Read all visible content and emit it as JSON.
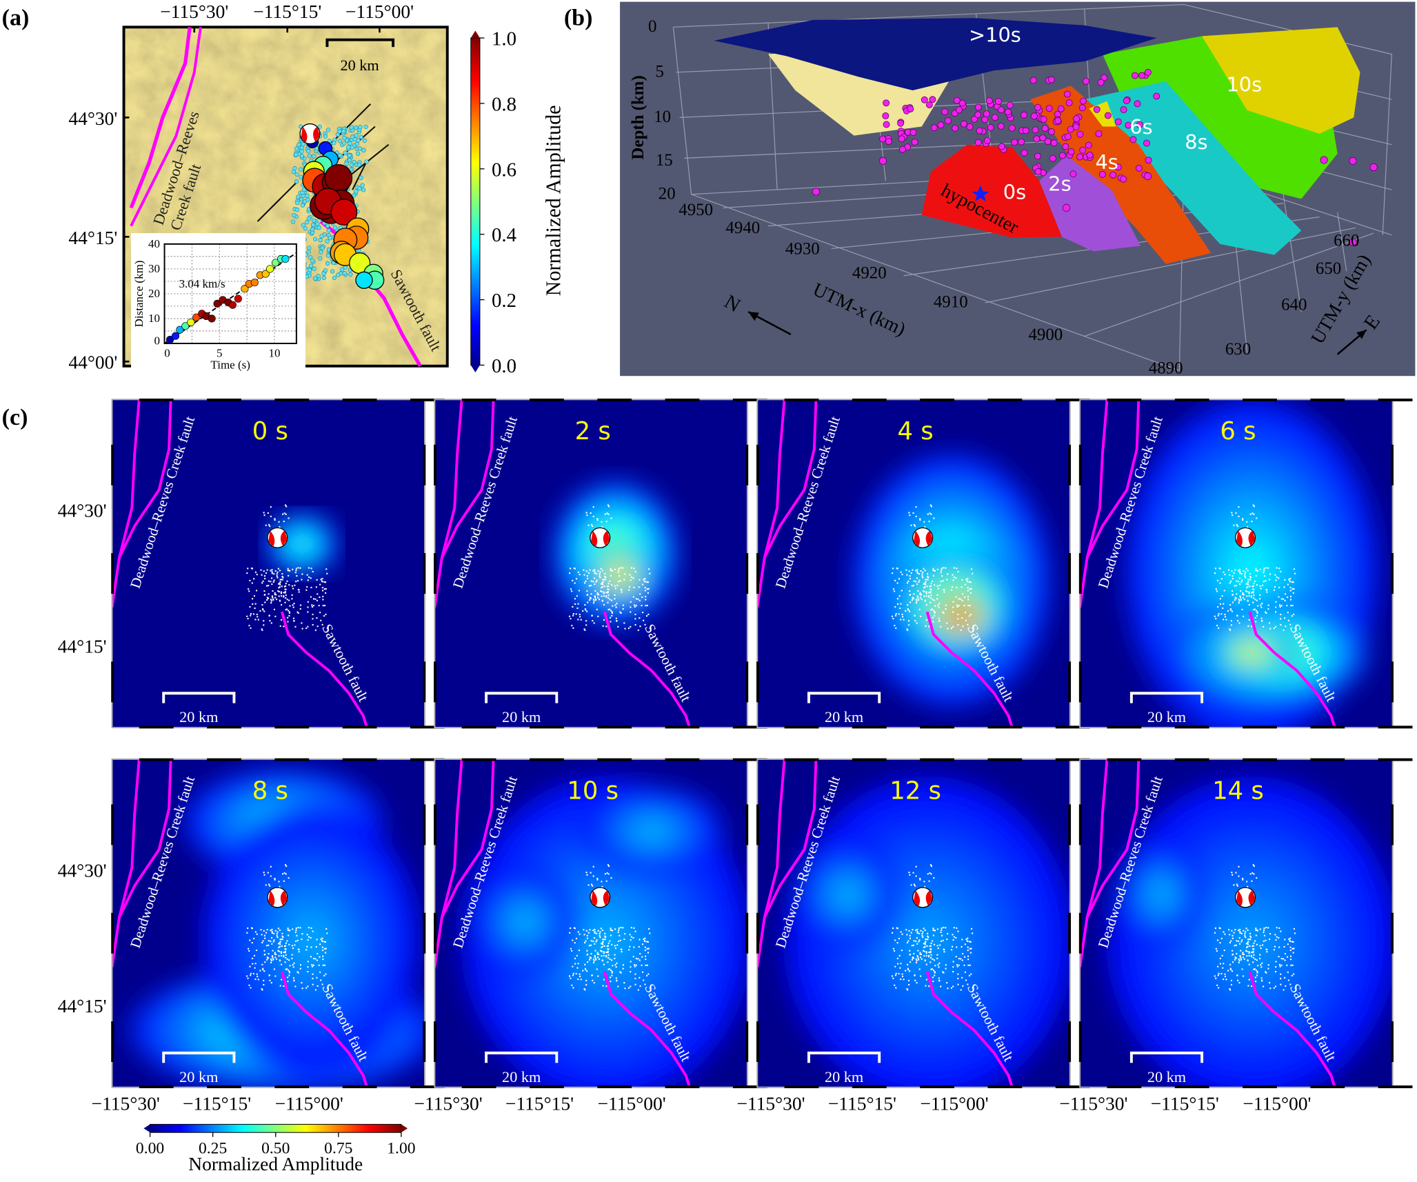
{
  "panel_labels": {
    "a": "(a)",
    "b": "(b)",
    "c": "(c)"
  },
  "colors": {
    "fault": "#ff00ff",
    "map_background": "#00008c",
    "panel_b_background": "#535872",
    "time_label": "#ffff00"
  },
  "panel_a": {
    "lon_ticks": [
      "−115°30'",
      "−115°15'",
      "−115°00'"
    ],
    "lat_ticks": [
      "44°30'",
      "44°15'",
      "44°00'"
    ],
    "scale_bar": "20 km",
    "fault_drc_line1": "Deadwood–Reeves",
    "fault_drc_line2": "Creek fault",
    "fault_sawtooth": "Sawtooth fault",
    "colorbar": {
      "ticks": [
        "1.0",
        "0.8",
        "0.6",
        "0.4",
        "0.2",
        "0.0"
      ],
      "label": "Normalized Amplitude",
      "colormap": "jet"
    }
  },
  "chart_data": {
    "type": "scatter",
    "xlabel": "Time (s)",
    "ylabel": "Distance (km)",
    "xlim": [
      0,
      12
    ],
    "ylim": [
      0,
      40
    ],
    "xticks": [
      "0",
      "5",
      "10"
    ],
    "yticks": [
      "0",
      "10",
      "20",
      "30",
      "40"
    ],
    "grid": true,
    "annotation": "3.04 km/s",
    "fit_slope_km_per_s": 3.04,
    "points": [
      {
        "t": 0.5,
        "d": 1.5,
        "amp": 0.05
      },
      {
        "t": 1.0,
        "d": 3,
        "amp": 0.15
      },
      {
        "t": 1.4,
        "d": 5.5,
        "amp": 0.3
      },
      {
        "t": 1.9,
        "d": 7,
        "amp": 0.45
      },
      {
        "t": 2.4,
        "d": 8.5,
        "amp": 0.6
      },
      {
        "t": 2.9,
        "d": 10.5,
        "amp": 0.8
      },
      {
        "t": 3.4,
        "d": 12,
        "amp": 0.95
      },
      {
        "t": 3.8,
        "d": 11,
        "amp": 1.0
      },
      {
        "t": 4.3,
        "d": 10,
        "amp": 1.0
      },
      {
        "t": 4.8,
        "d": 16,
        "amp": 1.0
      },
      {
        "t": 5.3,
        "d": 17.5,
        "amp": 0.98
      },
      {
        "t": 5.8,
        "d": 16.5,
        "amp": 1.0
      },
      {
        "t": 6.2,
        "d": 15.5,
        "amp": 0.95
      },
      {
        "t": 6.7,
        "d": 18,
        "amp": 0.92
      },
      {
        "t": 7.3,
        "d": 22,
        "amp": 0.7
      },
      {
        "t": 7.7,
        "d": 24,
        "amp": 0.75
      },
      {
        "t": 8.2,
        "d": 24.5,
        "amp": 0.75
      },
      {
        "t": 8.7,
        "d": 27.5,
        "amp": 0.72
      },
      {
        "t": 9.2,
        "d": 28,
        "amp": 0.68
      },
      {
        "t": 9.6,
        "d": 30,
        "amp": 0.6
      },
      {
        "t": 10.1,
        "d": 32.5,
        "amp": 0.5
      },
      {
        "t": 10.6,
        "d": 34,
        "amp": 0.45
      },
      {
        "t": 11.0,
        "d": 34,
        "amp": 0.35
      }
    ]
  },
  "panel_b": {
    "depth_label": "Depth (km)",
    "depth_ticks": [
      "0",
      "5",
      "10",
      "15",
      "20"
    ],
    "utm_x_label": "UTM-x (km)",
    "utm_x_ticks": [
      "4950",
      "4940",
      "4930",
      "4920",
      "4910",
      "4900",
      "4890"
    ],
    "utm_y_label": "UTM-y (km)",
    "utm_y_ticks": [
      "630",
      "640",
      "650",
      "660"
    ],
    "surface_labels": {
      "gt10": ">10s",
      "s10": "10s",
      "s8": "8s",
      "s6": "6s",
      "s4": "4s",
      "s2": "2s",
      "s0": "0s"
    },
    "hypocenter": "hypocenter",
    "north": "N",
    "east": "E"
  },
  "panel_c": {
    "frames": [
      {
        "label": "0 s",
        "peak_amplitude": 0.35
      },
      {
        "label": "2 s",
        "peak_amplitude": 0.75
      },
      {
        "label": "4 s",
        "peak_amplitude": 1.0
      },
      {
        "label": "6 s",
        "peak_amplitude": 0.65
      },
      {
        "label": "8 s",
        "peak_amplitude": 0.45
      },
      {
        "label": "10 s",
        "peak_amplitude": 0.22
      },
      {
        "label": "12 s",
        "peak_amplitude": 0.2
      },
      {
        "label": "14 s",
        "peak_amplitude": 0.2
      }
    ],
    "scale_bar": "20 km",
    "fault_drc": "Deadwood–Reeves Creek fault",
    "fault_sawtooth": "Sawtooth fault",
    "lon_ticks": [
      "−115°30'",
      "−115°15'",
      "−115°00'"
    ],
    "lat_ticks": [
      "44°30'",
      "44°15'"
    ],
    "colorbar": {
      "ticks": [
        "0.00",
        "0.25",
        "0.50",
        "0.75",
        "1.00"
      ],
      "label": "Normalized Amplitude",
      "colormap": "jet"
    }
  }
}
